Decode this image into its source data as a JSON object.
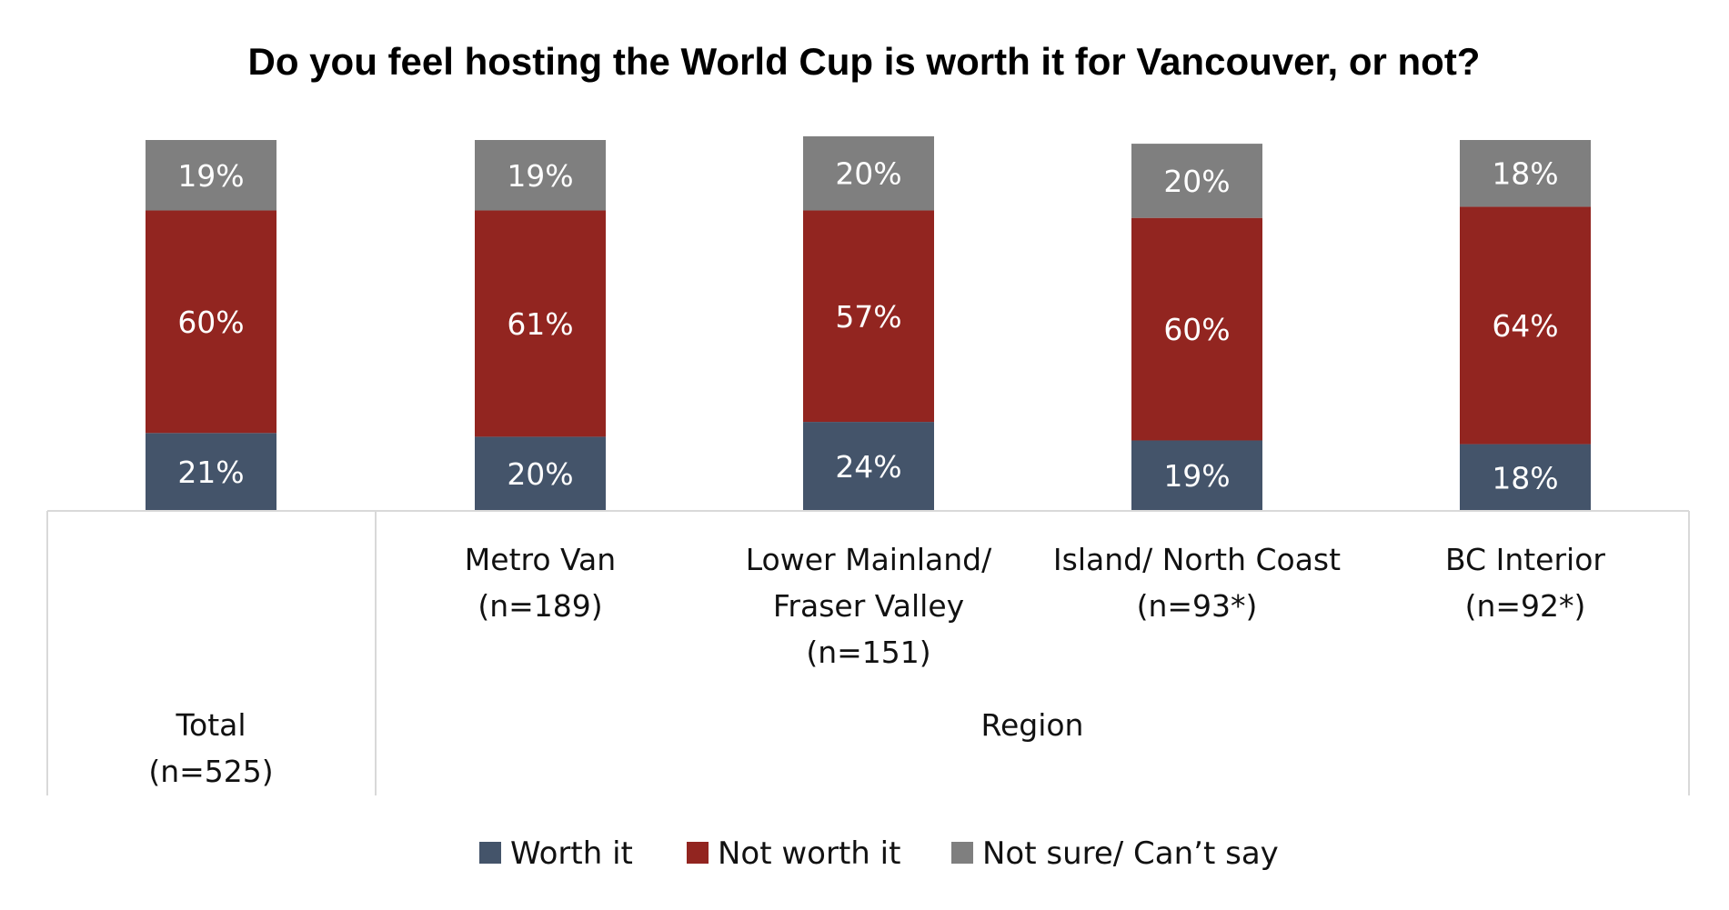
{
  "chart_data": {
    "type": "bar",
    "stacked": true,
    "title": "Do you feel hosting the World Cup is worth it for Vancouver, or not?",
    "categories": [
      [
        "Total",
        "(n=525)"
      ],
      [
        "Metro Van",
        "(n=189)"
      ],
      [
        "Lower Mainland/",
        "Fraser Valley",
        "(n=151)"
      ],
      [
        "Island/ North Coast",
        "(n=93*)"
      ],
      [
        "BC Interior",
        "(n=92*)"
      ]
    ],
    "groups": [
      {
        "label": "",
        "categories": [
          0
        ]
      },
      {
        "label": "Region",
        "categories": [
          1,
          2,
          3,
          4
        ]
      }
    ],
    "series": [
      {
        "name": "Worth it",
        "color": "#44546a",
        "values": [
          21,
          20,
          24,
          19,
          18
        ],
        "labels": [
          "21%",
          "20%",
          "24%",
          "19%",
          "18%"
        ]
      },
      {
        "name": "Not worth it",
        "color": "#922520",
        "values": [
          60,
          61,
          57,
          60,
          64
        ],
        "labels": [
          "60%",
          "61%",
          "57%",
          "60%",
          "64%"
        ]
      },
      {
        "name": "Not sure/ Can’t say",
        "color": "#7f7f7f",
        "values": [
          19,
          19,
          20,
          20,
          18
        ],
        "labels": [
          "19%",
          "19%",
          "20%",
          "20%",
          "18%"
        ]
      }
    ],
    "ylim": [
      0,
      100
    ],
    "legend_position": "bottom",
    "grid": false
  }
}
